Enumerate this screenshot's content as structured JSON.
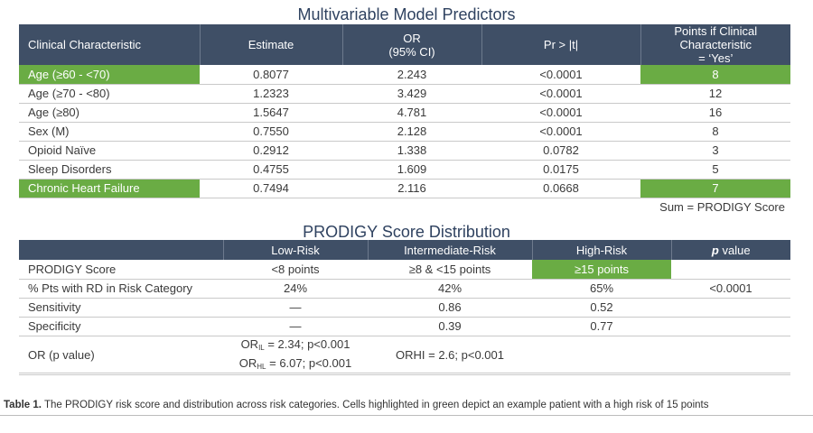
{
  "table1": {
    "title": "Multivariable Model Predictors",
    "headers": {
      "characteristic": "Clinical Characteristic",
      "estimate": "Estimate",
      "or_line1": "OR",
      "or_line2": "(95% CI)",
      "pr": "Pr > |t|",
      "points_line1": "Points if Clinical Characteristic",
      "points_line2": "= ‘Yes’"
    },
    "rows": [
      {
        "characteristic": "Age (≥60 - <70)",
        "estimate": "0.8077",
        "or": "2.243",
        "pr": "<0.0001",
        "points": "8",
        "highlight": true
      },
      {
        "characteristic": "Age (≥70 - <80)",
        "estimate": "1.2323",
        "or": "3.429",
        "pr": "<0.0001",
        "points": "12",
        "highlight": false
      },
      {
        "characteristic": "Age (≥80)",
        "estimate": "1.5647",
        "or": "4.781",
        "pr": "<0.0001",
        "points": "16",
        "highlight": false
      },
      {
        "characteristic": "Sex (M)",
        "estimate": "0.7550",
        "or": "2.128",
        "pr": "<0.0001",
        "points": "8",
        "highlight": false
      },
      {
        "characteristic": "Opioid Naïve",
        "estimate": "0.2912",
        "or": "1.338",
        "pr": "0.0782",
        "points": "3",
        "highlight": false
      },
      {
        "characteristic": "Sleep Disorders",
        "estimate": "0.4755",
        "or": "1.609",
        "pr": "0.0175",
        "points": "5",
        "highlight": false
      },
      {
        "characteristic": "Chronic Heart Failure",
        "estimate": "0.7494",
        "or": "2.116",
        "pr": "0.0668",
        "points": "7",
        "highlight": true
      }
    ],
    "sum_label": "Sum = PRODIGY Score"
  },
  "table2": {
    "title": "PRODIGY Score Distribution",
    "headers": {
      "blank": "",
      "low": "Low-Risk",
      "intermediate": "Intermediate-Risk",
      "high": "High-Risk",
      "p_italic": "p",
      "p_rest": " value"
    },
    "rows": {
      "score": {
        "label": "PRODIGY Score",
        "low": "<8 points",
        "intermediate": "≥8 & <15 points",
        "high": "≥15 points",
        "p": ""
      },
      "rd": {
        "label": "% Pts with RD in Risk Category",
        "low": "24%",
        "intermediate": "42%",
        "high": "65%",
        "p": "<0.0001"
      },
      "sensitivity": {
        "label": "Sensitivity",
        "low": "—",
        "intermediate": "0.86",
        "high": "0.52",
        "p": ""
      },
      "specificity": {
        "label": "Specificity",
        "low": "—",
        "intermediate": "0.39",
        "high": "0.77",
        "p": ""
      },
      "or": {
        "label": "OR (p value)",
        "low_line1_prefix": "OR",
        "low_line1_sub": "IL",
        "low_line1_rest": " = 2.34; p<0.001",
        "low_line2_prefix": "OR",
        "low_line2_sub": "HL",
        "low_line2_rest": " = 6.07; p<0.001",
        "intermediate": "ORHI = 2.6; p<0.001",
        "high": "",
        "p": ""
      }
    }
  },
  "caption": {
    "label": "Table 1.",
    "text": " The PRODIGY risk score and distribution across risk categories. Cells highlighted in green depict an example patient with a high risk of 15 points"
  },
  "colors": {
    "header_bg": "#3f4f66",
    "highlight_green": "#6aac44",
    "title_color": "#2f4260"
  }
}
